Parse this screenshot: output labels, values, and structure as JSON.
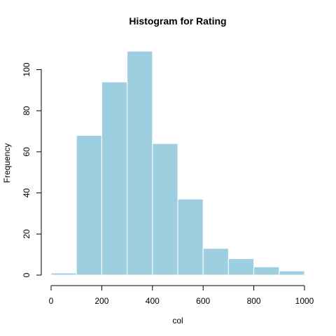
{
  "chart_data": {
    "type": "bar",
    "title": "Histogram for  Rating",
    "xlabel": "col",
    "ylabel": "Frequency",
    "bins": [
      {
        "start": 0,
        "end": 100,
        "count": 1
      },
      {
        "start": 100,
        "end": 200,
        "count": 68
      },
      {
        "start": 200,
        "end": 300,
        "count": 94
      },
      {
        "start": 300,
        "end": 400,
        "count": 109
      },
      {
        "start": 400,
        "end": 500,
        "count": 64
      },
      {
        "start": 500,
        "end": 600,
        "count": 37
      },
      {
        "start": 600,
        "end": 700,
        "count": 13
      },
      {
        "start": 700,
        "end": 800,
        "count": 8
      },
      {
        "start": 800,
        "end": 900,
        "count": 4
      },
      {
        "start": 900,
        "end": 1000,
        "count": 2
      }
    ],
    "xlim": [
      0,
      1000
    ],
    "ylim": [
      0,
      110
    ],
    "x_ticks": [
      "0",
      "200",
      "400",
      "600",
      "800",
      "1000"
    ],
    "y_ticks": [
      "0",
      "20",
      "40",
      "60",
      "80",
      "100"
    ],
    "grid": false,
    "legend": "none",
    "bar_color": "#9ecfe0",
    "bar_edge_color": "#ffffff"
  }
}
